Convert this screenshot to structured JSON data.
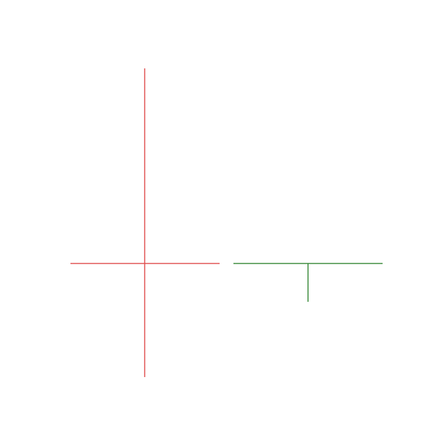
{
  "colors": {
    "background": "#ffffff",
    "red_figure": "#e05050",
    "green_figure": "#3a8a3a"
  },
  "figures": [
    {
      "name": "red-cross-figure",
      "color_key": "red_figure",
      "shape": "cross"
    },
    {
      "name": "green-t-figure",
      "color_key": "green_figure",
      "shape": "inverted-t"
    }
  ]
}
